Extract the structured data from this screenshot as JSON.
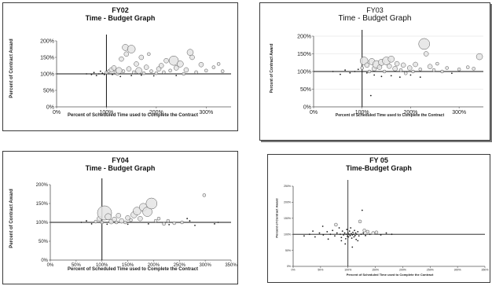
{
  "chart_data": [
    {
      "type": "scatter",
      "title_line1": "FY02",
      "title_line2": "Time - Budget Graph",
      "xlabel": "Percent of Scheduled Time used to Complete the Contract",
      "ylabel": "Percent of Contract Award",
      "xlim": [
        0,
        350
      ],
      "ylim": [
        0,
        200
      ],
      "x_ticks": [
        "0%",
        "100%",
        "200%",
        "300%"
      ],
      "x_tick_values": [
        0,
        100,
        200,
        300
      ],
      "y_ticks": [
        "0%",
        "50%",
        "100%",
        "150%",
        "200%"
      ],
      "y_tick_values": [
        0,
        50,
        100,
        150,
        200
      ],
      "ref_x": 100,
      "ref_y": 100,
      "points": [
        [
          85,
          100,
          1
        ],
        [
          92,
          102,
          1
        ],
        [
          96,
          98,
          1
        ],
        [
          100,
          104,
          2
        ],
        [
          105,
          108,
          2
        ],
        [
          110,
          112,
          3
        ],
        [
          115,
          118,
          3
        ],
        [
          118,
          105,
          2
        ],
        [
          122,
          100,
          2
        ],
        [
          125,
          110,
          4
        ],
        [
          130,
          145,
          3
        ],
        [
          134,
          108,
          2
        ],
        [
          138,
          180,
          4
        ],
        [
          140,
          160,
          3
        ],
        [
          145,
          115,
          3
        ],
        [
          150,
          175,
          5
        ],
        [
          155,
          105,
          2
        ],
        [
          160,
          130,
          3
        ],
        [
          165,
          110,
          4
        ],
        [
          170,
          150,
          3
        ],
        [
          175,
          102,
          2
        ],
        [
          180,
          120,
          3
        ],
        [
          185,
          160,
          2
        ],
        [
          190,
          108,
          2
        ],
        [
          200,
          102,
          2
        ],
        [
          205,
          115,
          3
        ],
        [
          210,
          125,
          3
        ],
        [
          215,
          105,
          2
        ],
        [
          220,
          140,
          3
        ],
        [
          228,
          110,
          2
        ],
        [
          235,
          140,
          6
        ],
        [
          240,
          118,
          3
        ],
        [
          248,
          130,
          4
        ],
        [
          255,
          100,
          2
        ],
        [
          260,
          112,
          3
        ],
        [
          268,
          165,
          4
        ],
        [
          272,
          150,
          3
        ],
        [
          280,
          105,
          2
        ],
        [
          290,
          128,
          3
        ],
        [
          300,
          110,
          2
        ],
        [
          315,
          120,
          2
        ],
        [
          325,
          130,
          2
        ],
        [
          333,
          108,
          2
        ],
        [
          60,
          100,
          1
        ],
        [
          70,
          98,
          1
        ],
        [
          75,
          104,
          1
        ],
        [
          80,
          95,
          1
        ],
        [
          88,
          108,
          1
        ],
        [
          112,
          98,
          1
        ],
        [
          128,
          92,
          1
        ],
        [
          150,
          95,
          1
        ],
        [
          170,
          96,
          1
        ],
        [
          195,
          94,
          1
        ],
        [
          240,
          95,
          1
        ]
      ]
    },
    {
      "type": "scatter",
      "title_line1": "FY03",
      "title_line2": "Time - Budget Graph",
      "xlabel": "Percent of Scheduled Time used to Complete the Contract",
      "ylabel": "Percent of Contract Award",
      "xlim": [
        0,
        350
      ],
      "ylim": [
        0,
        200
      ],
      "x_ticks": [
        "0%",
        "100%",
        "200%",
        "300%"
      ],
      "x_tick_values": [
        0,
        100,
        200,
        300
      ],
      "y_ticks": [
        "0%",
        "50%",
        "100%",
        "150%",
        "200%"
      ],
      "y_tick_values": [
        0,
        50,
        100,
        150,
        200
      ],
      "ref_x": 100,
      "ref_y": 100,
      "points": [
        [
          40,
          100,
          1
        ],
        [
          55,
          92,
          1
        ],
        [
          65,
          104,
          1
        ],
        [
          75,
          96,
          1
        ],
        [
          85,
          100,
          1
        ],
        [
          92,
          106,
          1
        ],
        [
          100,
          110,
          2
        ],
        [
          104,
          130,
          5
        ],
        [
          110,
          118,
          3
        ],
        [
          115,
          100,
          2
        ],
        [
          120,
          128,
          4
        ],
        [
          125,
          108,
          3
        ],
        [
          130,
          120,
          5
        ],
        [
          136,
          112,
          3
        ],
        [
          140,
          126,
          4
        ],
        [
          146,
          100,
          2
        ],
        [
          150,
          130,
          5
        ],
        [
          156,
          115,
          3
        ],
        [
          160,
          135,
          4
        ],
        [
          168,
          108,
          3
        ],
        [
          172,
          122,
          3
        ],
        [
          180,
          104,
          2
        ],
        [
          185,
          118,
          3
        ],
        [
          190,
          95,
          2
        ],
        [
          198,
          110,
          3
        ],
        [
          205,
          100,
          2
        ],
        [
          210,
          120,
          3
        ],
        [
          220,
          106,
          2
        ],
        [
          228,
          178,
          7
        ],
        [
          232,
          150,
          3
        ],
        [
          240,
          114,
          3
        ],
        [
          248,
          104,
          2
        ],
        [
          255,
          122,
          2
        ],
        [
          265,
          100,
          2
        ],
        [
          275,
          110,
          2
        ],
        [
          285,
          95,
          1
        ],
        [
          300,
          106,
          2
        ],
        [
          318,
          112,
          2
        ],
        [
          330,
          108,
          2
        ],
        [
          342,
          142,
          4
        ],
        [
          125,
          90,
          1
        ],
        [
          140,
          86,
          1
        ],
        [
          160,
          88,
          1
        ],
        [
          178,
          84,
          1
        ],
        [
          200,
          90,
          1
        ],
        [
          220,
          84,
          1
        ],
        [
          110,
          96,
          1
        ],
        [
          118,
          32,
          1
        ]
      ]
    },
    {
      "type": "scatter",
      "title_line1": "FY04",
      "title_line2": "Time - Budget Graph",
      "xlabel": "Percent of Scheduled Time used to Complete the Contract",
      "ylabel": "Percent of Contract Award",
      "xlim": [
        0,
        350
      ],
      "ylim": [
        0,
        200
      ],
      "x_ticks": [
        "0%",
        "50%",
        "100%",
        "150%",
        "200%",
        "250%",
        "300%",
        "350%"
      ],
      "x_tick_values": [
        0,
        50,
        100,
        150,
        200,
        250,
        300,
        350
      ],
      "y_ticks": [
        "0%",
        "50%",
        "100%",
        "150%",
        "200%"
      ],
      "y_tick_values": [
        0,
        50,
        100,
        150,
        200
      ],
      "ref_x": 100,
      "ref_y": 100,
      "points": [
        [
          60,
          100,
          1
        ],
        [
          70,
          104,
          1
        ],
        [
          80,
          96,
          1
        ],
        [
          88,
          102,
          2
        ],
        [
          95,
          110,
          3
        ],
        [
          100,
          100,
          2
        ],
        [
          105,
          125,
          9
        ],
        [
          112,
          115,
          4
        ],
        [
          118,
          102,
          3
        ],
        [
          124,
          108,
          3
        ],
        [
          128,
          100,
          2
        ],
        [
          132,
          118,
          3
        ],
        [
          138,
          104,
          3
        ],
        [
          145,
          100,
          2
        ],
        [
          150,
          112,
          3
        ],
        [
          156,
          106,
          2
        ],
        [
          162,
          120,
          4
        ],
        [
          168,
          130,
          5
        ],
        [
          174,
          110,
          3
        ],
        [
          180,
          140,
          5
        ],
        [
          188,
          128,
          6
        ],
        [
          196,
          150,
          7
        ],
        [
          204,
          104,
          2
        ],
        [
          210,
          110,
          2
        ],
        [
          220,
          96,
          2
        ],
        [
          228,
          104,
          2
        ],
        [
          240,
          98,
          2
        ],
        [
          255,
          100,
          2
        ],
        [
          270,
          104,
          1
        ],
        [
          298,
          172,
          2
        ],
        [
          318,
          96,
          1
        ],
        [
          325,
          100,
          1
        ],
        [
          110,
          95,
          1
        ],
        [
          150,
          95,
          1
        ],
        [
          190,
          96,
          1
        ],
        [
          230,
          94,
          1
        ],
        [
          265,
          110,
          1
        ],
        [
          280,
          92,
          1
        ]
      ]
    },
    {
      "type": "scatter",
      "title_line1": "FY 05",
      "title_line2": "Time-Budget Graph",
      "xlabel": "Percent of Scheduled Time used to Complete the Contract",
      "ylabel": "Percent of Contract Award",
      "xlim": [
        0,
        350
      ],
      "ylim": [
        0,
        250
      ],
      "x_ticks": [
        "0%",
        "50%",
        "100%",
        "150%",
        "200%",
        "250%",
        "300%",
        "350%"
      ],
      "x_tick_values": [
        0,
        50,
        100,
        150,
        200,
        250,
        300,
        350
      ],
      "y_ticks": [
        "0%",
        "50%",
        "100%",
        "150%",
        "200%",
        "250%"
      ],
      "y_tick_values": [
        0,
        50,
        100,
        150,
        200,
        250
      ],
      "ref_x": 100,
      "ref_y": 100,
      "points": [
        [
          20,
          95,
          1
        ],
        [
          30,
          100,
          1
        ],
        [
          40,
          92,
          1
        ],
        [
          48,
          104,
          1
        ],
        [
          55,
          98,
          1
        ],
        [
          62,
          108,
          1
        ],
        [
          68,
          100,
          1
        ],
        [
          72,
          112,
          1
        ],
        [
          76,
          95,
          1
        ],
        [
          80,
          104,
          1
        ],
        [
          84,
          120,
          1
        ],
        [
          86,
          100,
          1
        ],
        [
          88,
          90,
          1
        ],
        [
          90,
          110,
          1
        ],
        [
          92,
          98,
          1
        ],
        [
          94,
          104,
          1
        ],
        [
          96,
          86,
          1
        ],
        [
          97,
          100,
          1
        ],
        [
          98,
          115,
          1
        ],
        [
          99,
          94,
          1
        ],
        [
          100,
          104,
          1
        ],
        [
          101,
          92,
          1
        ],
        [
          102,
          100,
          1
        ],
        [
          103,
          110,
          1
        ],
        [
          104,
          96,
          1
        ],
        [
          105,
          120,
          1
        ],
        [
          106,
          102,
          1
        ],
        [
          107,
          88,
          1
        ],
        [
          108,
          98,
          1
        ],
        [
          109,
          106,
          1
        ],
        [
          110,
          100,
          1
        ],
        [
          111,
          92,
          1
        ],
        [
          112,
          112,
          1
        ],
        [
          113,
          96,
          1
        ],
        [
          114,
          104,
          1
        ],
        [
          115,
          84,
          1
        ],
        [
          116,
          100,
          1
        ],
        [
          118,
          108,
          1
        ],
        [
          120,
          95,
          1
        ],
        [
          122,
          140,
          2
        ],
        [
          124,
          100,
          1
        ],
        [
          126,
          175,
          1
        ],
        [
          128,
          104,
          1
        ],
        [
          130,
          112,
          2
        ],
        [
          132,
          96,
          1
        ],
        [
          136,
          108,
          2
        ],
        [
          140,
          100,
          1
        ],
        [
          146,
          104,
          2
        ],
        [
          152,
          106,
          2
        ],
        [
          160,
          98,
          1
        ],
        [
          170,
          104,
          1
        ],
        [
          180,
          100,
          1
        ],
        [
          54,
          125,
          1
        ],
        [
          78,
          130,
          2
        ],
        [
          95,
          70,
          1
        ],
        [
          108,
          60,
          1
        ],
        [
          88,
          80,
          1
        ],
        [
          118,
          80,
          1
        ],
        [
          36,
          110,
          1
        ],
        [
          64,
          85,
          1
        ]
      ]
    }
  ]
}
